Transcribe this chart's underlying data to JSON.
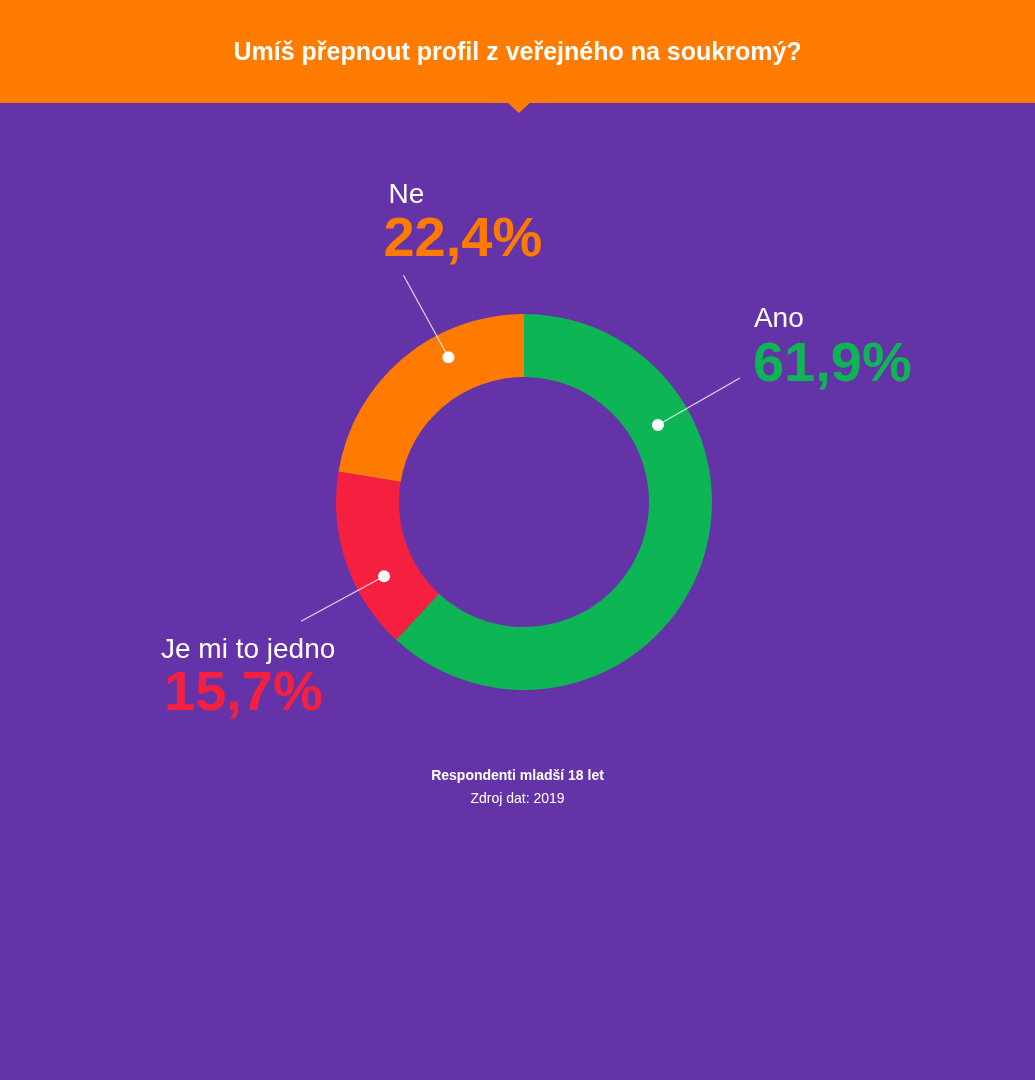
{
  "chart_data": {
    "type": "donut",
    "title": "Umíš přepnout profil z veřejného na soukromý?",
    "categories": [
      "Ano",
      "Je mi to jedno",
      "Ne"
    ],
    "values": [
      61.9,
      15.7,
      22.4
    ],
    "colors": [
      "#0db554",
      "#f5203f",
      "#ff7a00"
    ],
    "value_labels": [
      "61,9%",
      "15,7%",
      "22,4%"
    ],
    "annotations": [
      "Respondenti mladší 18 let",
      "Zdroj dat: 2019"
    ]
  }
}
